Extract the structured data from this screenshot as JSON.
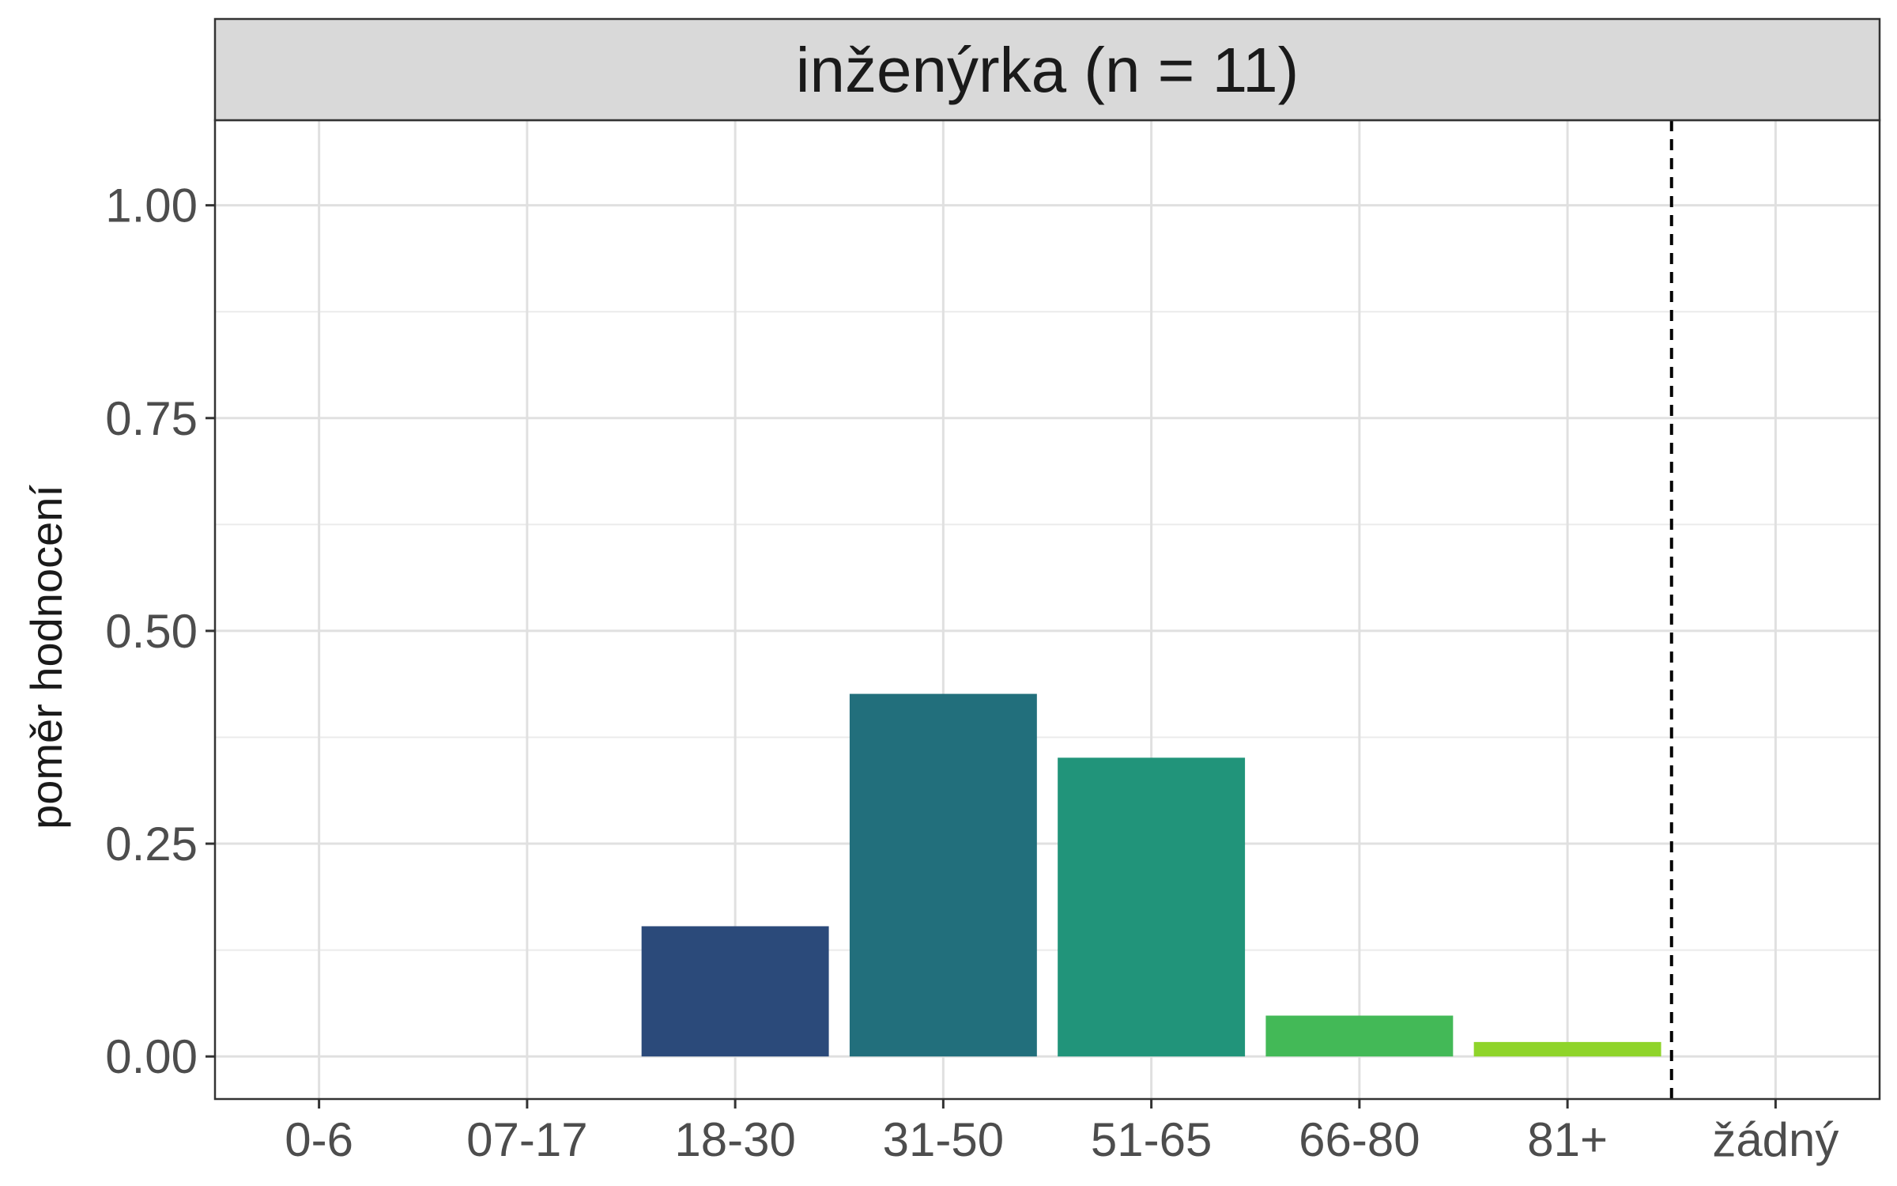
{
  "chart_data": {
    "type": "bar",
    "title": "inženýrka (n = 11)",
    "xlabel": "",
    "ylabel": "poměr hodnocení",
    "categories": [
      "0-6",
      "07-17",
      "18-30",
      "31-50",
      "51-65",
      "66-80",
      "81+",
      "žádný"
    ],
    "values": [
      0,
      0,
      0.153,
      0.426,
      0.351,
      0.048,
      0.017,
      0
    ],
    "colors": [
      "#440154",
      "#46337e",
      "#2b4a7a",
      "#226f7c",
      "#21947a",
      "#43b957",
      "#8fd42a",
      "#fde725"
    ],
    "ylim": [
      -0.05,
      1.1
    ],
    "yticks": [
      0.0,
      0.25,
      0.5,
      0.75,
      1.0
    ],
    "ytick_labels": [
      "0.00",
      "0.25",
      "0.50",
      "0.75",
      "1.00"
    ],
    "reference_line": {
      "between": [
        "81+",
        "žádný"
      ],
      "style": "dashed"
    },
    "grid": true,
    "legend": "none"
  }
}
